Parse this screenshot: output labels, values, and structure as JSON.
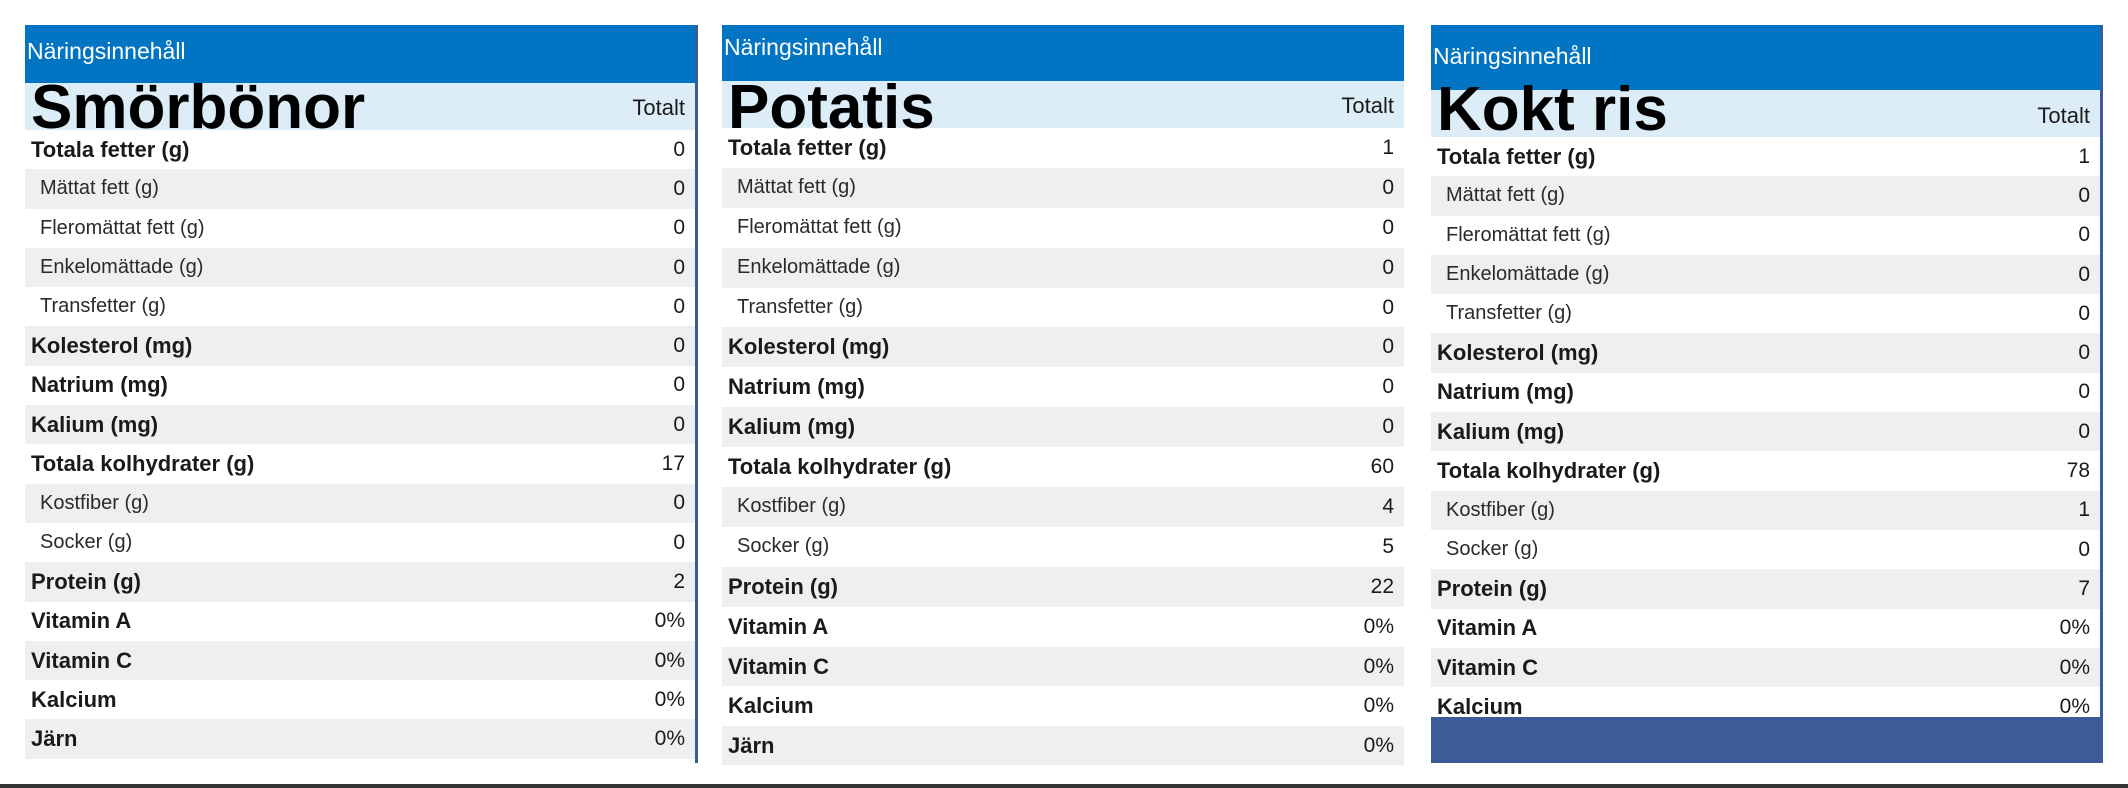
{
  "panels": [
    {
      "header": "Näringsinnehåll",
      "food": "Smörbönor",
      "total_label": "Totalt",
      "rows": [
        {
          "label": "Totala fetter (g)",
          "value": "0"
        },
        {
          "label": "Mättat fett (g)",
          "value": "0"
        },
        {
          "label": "Fleromättat fett (g)",
          "value": "0"
        },
        {
          "label": "Enkelomättade (g)",
          "value": "0"
        },
        {
          "label": "Transfetter (g)",
          "value": "0"
        },
        {
          "label": "Kolesterol (mg)",
          "value": "0"
        },
        {
          "label": "Natrium (mg)",
          "value": "0"
        },
        {
          "label": "Kalium (mg)",
          "value": "0"
        },
        {
          "label": "Totala kolhydrater (g)",
          "value": "17"
        },
        {
          "label": "Kostfiber (g)",
          "value": "0"
        },
        {
          "label": "Socker (g)",
          "value": "0"
        },
        {
          "label": "Protein (g)",
          "value": "2"
        },
        {
          "label": "Vitamin A",
          "value": "0%"
        },
        {
          "label": "Vitamin C",
          "value": "0%"
        },
        {
          "label": "Kalcium",
          "value": "0%"
        },
        {
          "label": "Järn",
          "value": "0%"
        }
      ]
    },
    {
      "header": "Näringsinnehåll",
      "food": "Potatis",
      "total_label": "Totalt",
      "rows": [
        {
          "label": "Totala fetter (g)",
          "value": "1"
        },
        {
          "label": "Mättat fett (g)",
          "value": "0"
        },
        {
          "label": "Fleromättat fett (g)",
          "value": "0"
        },
        {
          "label": "Enkelomättade (g)",
          "value": "0"
        },
        {
          "label": "Transfetter (g)",
          "value": "0"
        },
        {
          "label": "Kolesterol (mg)",
          "value": "0"
        },
        {
          "label": "Natrium (mg)",
          "value": "0"
        },
        {
          "label": "Kalium (mg)",
          "value": "0"
        },
        {
          "label": "Totala kolhydrater (g)",
          "value": "60"
        },
        {
          "label": "Kostfiber (g)",
          "value": "4"
        },
        {
          "label": "Socker (g)",
          "value": "5"
        },
        {
          "label": "Protein (g)",
          "value": "22"
        },
        {
          "label": "Vitamin A",
          "value": "0%"
        },
        {
          "label": "Vitamin C",
          "value": "0%"
        },
        {
          "label": "Kalcium",
          "value": "0%"
        },
        {
          "label": "Järn",
          "value": "0%"
        }
      ]
    },
    {
      "header": "Näringsinnehåll",
      "food": "Kokt ris",
      "total_label": "Totalt",
      "rows": [
        {
          "label": "Totala fetter (g)",
          "value": "1"
        },
        {
          "label": "Mättat fett (g)",
          "value": "0"
        },
        {
          "label": "Fleromättat fett (g)",
          "value": "0"
        },
        {
          "label": "Enkelomättade (g)",
          "value": "0"
        },
        {
          "label": "Transfetter (g)",
          "value": "0"
        },
        {
          "label": "Kolesterol (mg)",
          "value": "0"
        },
        {
          "label": "Natrium (mg)",
          "value": "0"
        },
        {
          "label": "Kalium (mg)",
          "value": "0"
        },
        {
          "label": "Totala kolhydrater (g)",
          "value": "78"
        },
        {
          "label": "Kostfiber (g)",
          "value": "1"
        },
        {
          "label": "Socker (g)",
          "value": "0"
        },
        {
          "label": "Protein (g)",
          "value": "7"
        },
        {
          "label": "Vitamin A",
          "value": "0%"
        },
        {
          "label": "Vitamin C",
          "value": "0%"
        },
        {
          "label": "Kalcium",
          "value": "0%"
        }
      ]
    }
  ]
}
